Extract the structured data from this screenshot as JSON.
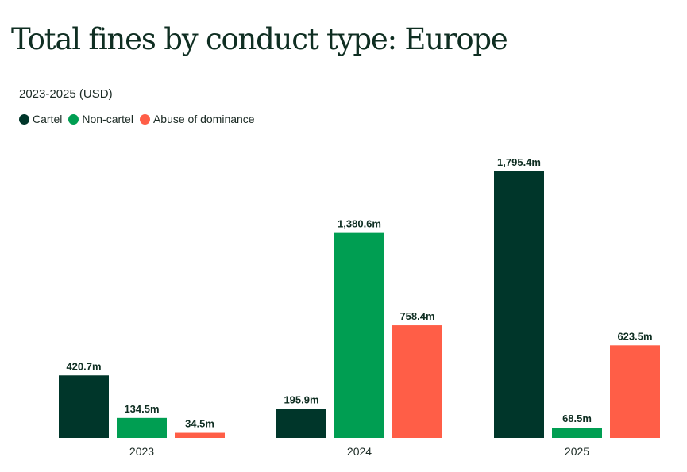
{
  "chart_data": {
    "type": "bar",
    "title": "Total fines by conduct type: Europe",
    "subtitle": "2023-2025 (USD)",
    "xlabel": "",
    "ylabel": "",
    "categories": [
      "2023",
      "2024",
      "2025"
    ],
    "series": [
      {
        "name": "Cartel",
        "color": "#00362a",
        "values": [
          420.7,
          195.9,
          1795.4
        ],
        "labels": [
          "420.7m",
          "195.9m",
          "1,795.4m"
        ]
      },
      {
        "name": "Non-cartel",
        "color": "#009e52",
        "values": [
          134.5,
          1380.6,
          68.5
        ],
        "labels": [
          "134.5m",
          "1,380.6m",
          "68.5m"
        ]
      },
      {
        "name": "Abuse of dominance",
        "color": "#ff5e47",
        "values": [
          34.5,
          758.4,
          623.5
        ],
        "labels": [
          "34.5m",
          "758.4m",
          "623.5m"
        ]
      }
    ],
    "ylim": [
      0,
      1795.4
    ],
    "grid": false,
    "legend_position": "top-left"
  }
}
